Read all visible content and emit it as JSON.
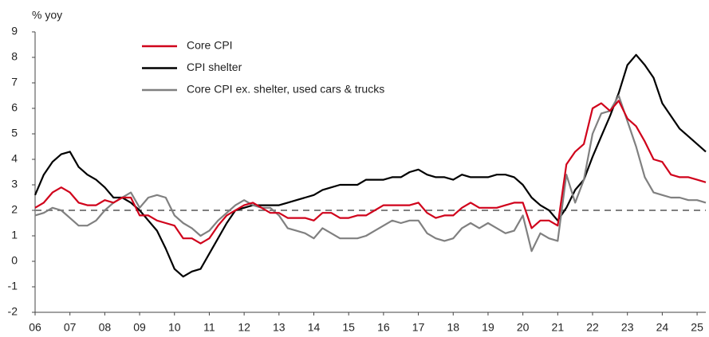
{
  "chart_data": {
    "type": "line",
    "y_label": "% yoy",
    "x": [
      2006,
      2006.25,
      2006.5,
      2006.75,
      2007,
      2007.25,
      2007.5,
      2007.75,
      2008,
      2008.25,
      2008.5,
      2008.75,
      2009,
      2009.25,
      2009.5,
      2009.75,
      2010,
      2010.25,
      2010.5,
      2010.75,
      2011,
      2011.25,
      2011.5,
      2011.75,
      2012,
      2012.25,
      2012.5,
      2012.75,
      2013,
      2013.25,
      2013.5,
      2013.75,
      2014,
      2014.25,
      2014.5,
      2014.75,
      2015,
      2015.25,
      2015.5,
      2015.75,
      2016,
      2016.25,
      2016.5,
      2016.75,
      2017,
      2017.25,
      2017.5,
      2017.75,
      2018,
      2018.25,
      2018.5,
      2018.75,
      2019,
      2019.25,
      2019.5,
      2019.75,
      2020,
      2020.25,
      2020.5,
      2020.75,
      2021,
      2021.25,
      2021.5,
      2021.75,
      2022,
      2022.25,
      2022.5,
      2022.75,
      2023,
      2023.25,
      2023.5,
      2023.75,
      2024,
      2024.25,
      2024.5,
      2024.75,
      2025,
      2025.25
    ],
    "series": [
      {
        "name": "Core CPI",
        "color": "#d0021b",
        "values": [
          2.1,
          2.3,
          2.7,
          2.9,
          2.7,
          2.3,
          2.2,
          2.2,
          2.4,
          2.3,
          2.5,
          2.5,
          1.8,
          1.8,
          1.6,
          1.5,
          1.4,
          0.9,
          0.9,
          0.7,
          0.9,
          1.4,
          1.8,
          2.0,
          2.2,
          2.3,
          2.1,
          1.9,
          1.9,
          1.7,
          1.7,
          1.7,
          1.6,
          1.9,
          1.9,
          1.7,
          1.7,
          1.8,
          1.8,
          2.0,
          2.2,
          2.2,
          2.2,
          2.2,
          2.3,
          1.9,
          1.7,
          1.8,
          1.8,
          2.1,
          2.3,
          2.1,
          2.1,
          2.1,
          2.2,
          2.3,
          2.3,
          1.3,
          1.6,
          1.6,
          1.4,
          3.8,
          4.3,
          4.6,
          6.0,
          6.2,
          5.9,
          6.3,
          5.6,
          5.3,
          4.7,
          4.0,
          3.9,
          3.4,
          3.3,
          3.3,
          3.2,
          3.1
        ]
      },
      {
        "name": "CPI shelter",
        "color": "#000000",
        "values": [
          2.6,
          3.4,
          3.9,
          4.2,
          4.3,
          3.7,
          3.4,
          3.2,
          2.9,
          2.5,
          2.5,
          2.3,
          2.0,
          1.6,
          1.2,
          0.5,
          -0.3,
          -0.6,
          -0.4,
          -0.3,
          0.3,
          0.9,
          1.5,
          2.0,
          2.1,
          2.2,
          2.2,
          2.2,
          2.2,
          2.3,
          2.4,
          2.5,
          2.6,
          2.8,
          2.9,
          3.0,
          3.0,
          3.0,
          3.2,
          3.2,
          3.2,
          3.3,
          3.3,
          3.5,
          3.6,
          3.4,
          3.3,
          3.3,
          3.2,
          3.4,
          3.3,
          3.3,
          3.3,
          3.4,
          3.4,
          3.3,
          3.0,
          2.5,
          2.2,
          2.0,
          1.6,
          2.1,
          2.8,
          3.2,
          4.1,
          4.9,
          5.7,
          6.6,
          7.7,
          8.1,
          7.7,
          7.2,
          6.2,
          5.7,
          5.2,
          4.9,
          4.6,
          4.3
        ]
      },
      {
        "name": "Core CPI ex. shelter, used cars & trucks",
        "color": "#808080",
        "values": [
          1.8,
          1.9,
          2.1,
          2.0,
          1.7,
          1.4,
          1.4,
          1.6,
          2.0,
          2.3,
          2.5,
          2.7,
          2.1,
          2.5,
          2.6,
          2.5,
          1.8,
          1.5,
          1.3,
          1.0,
          1.2,
          1.6,
          1.9,
          2.2,
          2.4,
          2.2,
          2.1,
          2.1,
          1.8,
          1.3,
          1.2,
          1.1,
          0.9,
          1.3,
          1.1,
          0.9,
          0.9,
          0.9,
          1.0,
          1.2,
          1.4,
          1.6,
          1.5,
          1.6,
          1.6,
          1.1,
          0.9,
          0.8,
          0.9,
          1.3,
          1.5,
          1.3,
          1.5,
          1.3,
          1.1,
          1.2,
          1.8,
          0.4,
          1.1,
          0.9,
          0.8,
          3.4,
          2.3,
          3.2,
          5.0,
          5.8,
          5.9,
          6.5,
          5.5,
          4.5,
          3.3,
          2.7,
          2.6,
          2.5,
          2.5,
          2.4,
          2.4,
          2.3
        ]
      }
    ],
    "xlim": [
      2006,
      2025.25
    ],
    "xticks": [
      {
        "value": 2006,
        "label": "06"
      },
      {
        "value": 2007,
        "label": "07"
      },
      {
        "value": 2008,
        "label": "08"
      },
      {
        "value": 2009,
        "label": "09"
      },
      {
        "value": 2010,
        "label": "10"
      },
      {
        "value": 2011,
        "label": "11"
      },
      {
        "value": 2012,
        "label": "12"
      },
      {
        "value": 2013,
        "label": "13"
      },
      {
        "value": 2014,
        "label": "14"
      },
      {
        "value": 2015,
        "label": "15"
      },
      {
        "value": 2016,
        "label": "16"
      },
      {
        "value": 2017,
        "label": "17"
      },
      {
        "value": 2018,
        "label": "18"
      },
      {
        "value": 2019,
        "label": "19"
      },
      {
        "value": 2020,
        "label": "20"
      },
      {
        "value": 2021,
        "label": "21"
      },
      {
        "value": 2022,
        "label": "22"
      },
      {
        "value": 2023,
        "label": "23"
      },
      {
        "value": 2024,
        "label": "24"
      },
      {
        "value": 2025,
        "label": "25"
      }
    ],
    "ylim": [
      -2,
      9
    ],
    "yticks": [
      -2,
      -1,
      0,
      1,
      2,
      3,
      4,
      5,
      6,
      7,
      8,
      9
    ],
    "reference_line": {
      "value": 2,
      "color": "#808080"
    },
    "legend": "upper left"
  }
}
